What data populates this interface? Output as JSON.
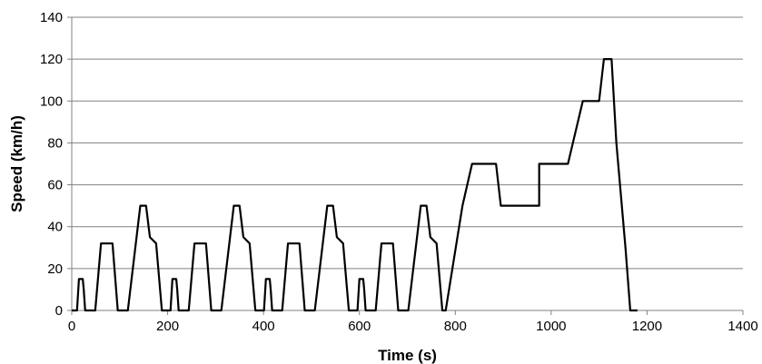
{
  "chart_data": {
    "type": "line",
    "title": "",
    "xlabel": "Time (s)",
    "ylabel": "Speed (km/h)",
    "xlim": [
      0,
      1400
    ],
    "ylim": [
      0,
      140
    ],
    "xticks": [
      0,
      200,
      400,
      600,
      800,
      1000,
      1200,
      1400
    ],
    "yticks": [
      0,
      20,
      40,
      60,
      80,
      100,
      120,
      140
    ],
    "grid": true,
    "legend": "none",
    "colors": {
      "line": "#000000",
      "grid": "#808080"
    },
    "series": [
      {
        "x": [
          0,
          11,
          15,
          23,
          25,
          28,
          49,
          61,
          85,
          96,
          117,
          143,
          155,
          163,
          176,
          188,
          195,
          206,
          210,
          218,
          220,
          223,
          244,
          256,
          280,
          291,
          312,
          338,
          350,
          358,
          371,
          383,
          390,
          401,
          405,
          413,
          415,
          418,
          439,
          451,
          475,
          486,
          507,
          533,
          545,
          553,
          566,
          578,
          585,
          596,
          600,
          608,
          610,
          613,
          634,
          646,
          670,
          681,
          702,
          728,
          740,
          748,
          761,
          773,
          780,
          815,
          835,
          835,
          875,
          885,
          895,
          895,
          925,
          940,
          975,
          975,
          1031,
          1035,
          1066,
          1070,
          1100,
          1110,
          1126,
          1136,
          1155,
          1165,
          1180
        ],
        "y": [
          0,
          0,
          15,
          15,
          10,
          0,
          0,
          32,
          32,
          0,
          0,
          50,
          50,
          35,
          32,
          0,
          0,
          0,
          15,
          15,
          10,
          0,
          0,
          32,
          32,
          0,
          0,
          50,
          50,
          35,
          32,
          0,
          0,
          0,
          15,
          15,
          10,
          0,
          0,
          32,
          32,
          0,
          0,
          50,
          50,
          35,
          32,
          0,
          0,
          0,
          15,
          15,
          10,
          0,
          0,
          32,
          32,
          0,
          0,
          50,
          50,
          35,
          32,
          0,
          0,
          50,
          70,
          70,
          70,
          70,
          50,
          50,
          50,
          50,
          50,
          70,
          70,
          70,
          100,
          100,
          100,
          120,
          120,
          80,
          30,
          0,
          0
        ]
      }
    ]
  }
}
